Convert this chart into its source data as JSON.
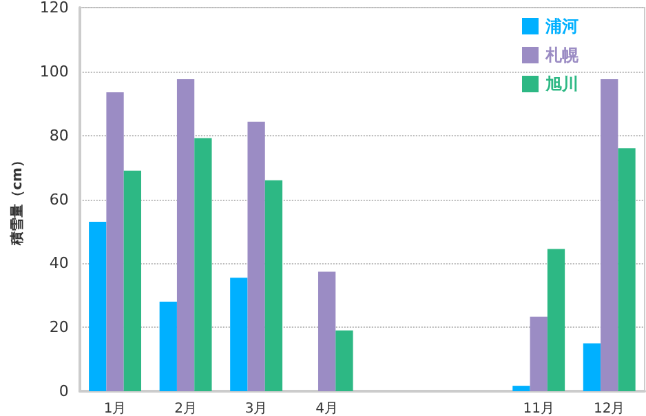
{
  "chart_data": {
    "type": "bar",
    "ylabel": "積雪量（cm）",
    "categories": [
      "1月",
      "2月",
      "3月",
      "4月",
      null,
      null,
      "11月",
      "12月"
    ],
    "series": [
      {
        "name": "浦河",
        "color": "#00b0ff",
        "values": [
          53,
          28,
          35.5,
          null,
          null,
          null,
          1.7,
          15
        ]
      },
      {
        "name": "札幌",
        "color": "#9b8cc4",
        "values": [
          93.5,
          97.6,
          84.3,
          37.4,
          null,
          null,
          23.3,
          97.6
        ]
      },
      {
        "name": "旭川",
        "color": "#2db884",
        "values": [
          69,
          79.2,
          66,
          19,
          null,
          null,
          44.5,
          76
        ]
      }
    ],
    "ylim": [
      0,
      120
    ],
    "yticks": [
      0,
      20,
      40,
      60,
      80,
      100,
      120
    ],
    "grid": "y",
    "legend": "top right"
  }
}
